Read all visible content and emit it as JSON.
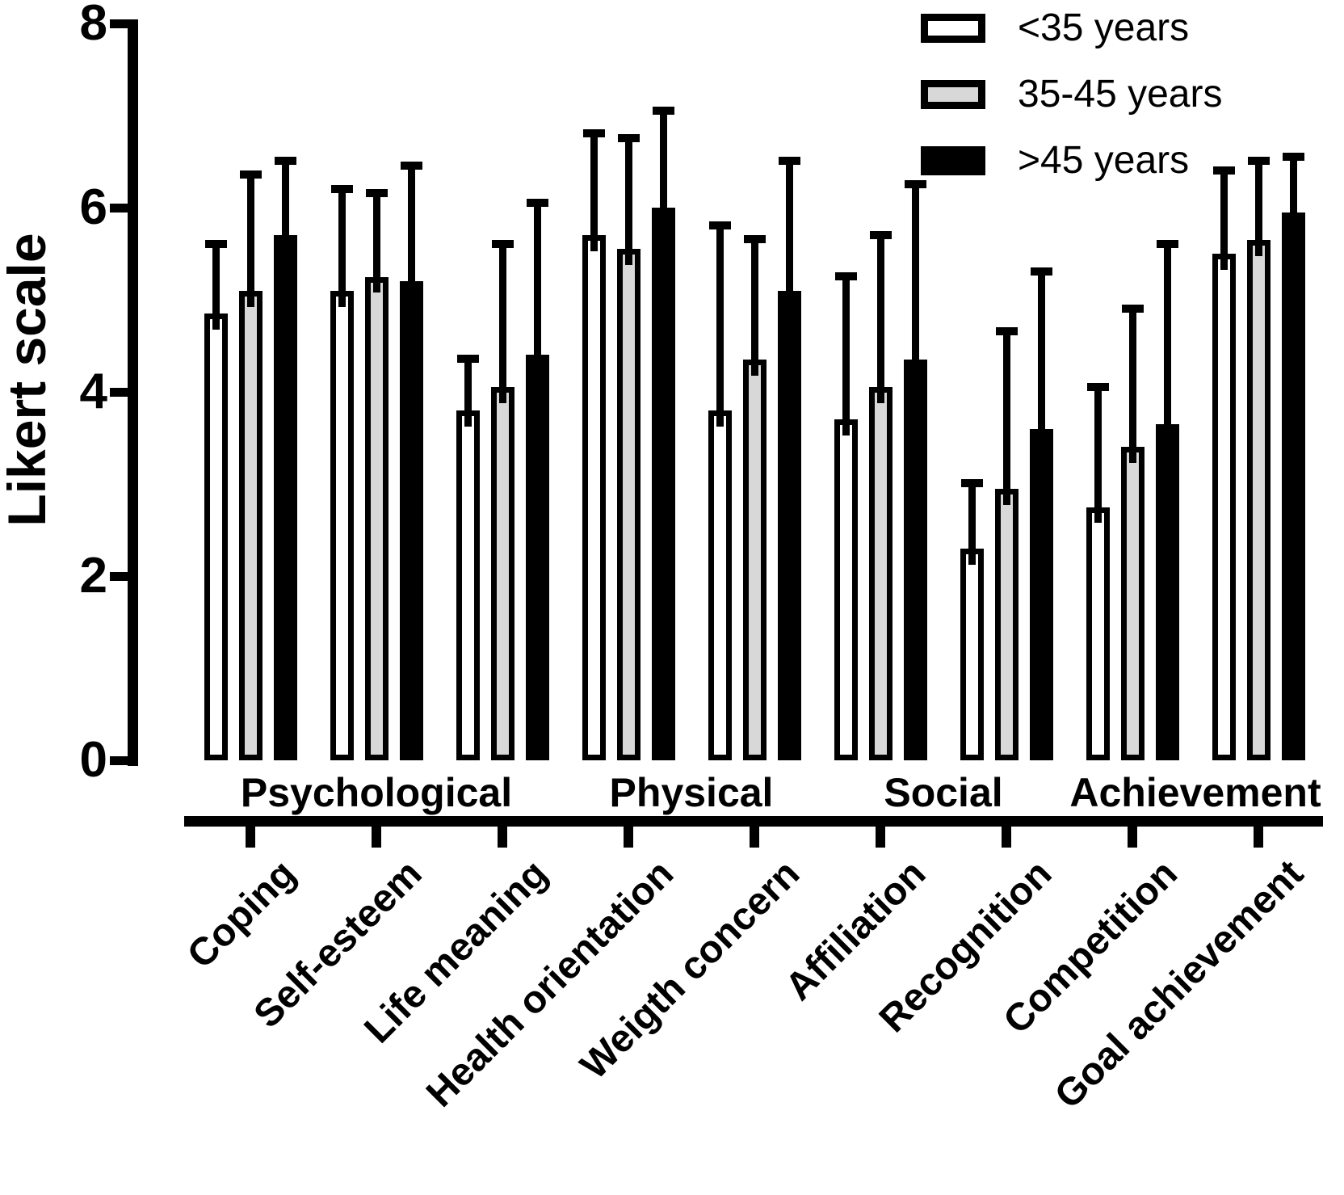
{
  "chart_data": {
    "type": "grouped_bar",
    "title": "",
    "axis": {
      "title": "Likert scale",
      "min": 0,
      "max": 8,
      "ticks": [
        0,
        2,
        4,
        6,
        8
      ]
    },
    "categories": [
      "Coping",
      "Self-esteem",
      "Life meaning",
      "Health orientation",
      "Weigth concern",
      "Affiliation",
      "Recognition",
      "Competition",
      "Goal achievement"
    ],
    "group_headers": [
      {
        "label": "Psychological",
        "categories": [
          0,
          1,
          2
        ]
      },
      {
        "label": "Physical",
        "categories": [
          3,
          4
        ]
      },
      {
        "label": "Social",
        "categories": [
          5,
          6
        ]
      },
      {
        "label": "Achievement",
        "categories": [
          7,
          8
        ]
      }
    ],
    "series": [
      {
        "name": "<35 years",
        "fill": "#ffffff",
        "values": [
          4.85,
          5.1,
          3.8,
          5.7,
          3.8,
          3.7,
          2.3,
          2.75,
          5.5
        ],
        "errors": [
          0.8,
          1.15,
          0.6,
          1.15,
          2.05,
          1.6,
          0.75,
          1.35,
          0.95
        ]
      },
      {
        "name": "35-45 years",
        "fill": "#d8d8d8",
        "values": [
          5.1,
          5.25,
          4.05,
          5.55,
          4.35,
          4.05,
          2.95,
          3.4,
          5.65
        ],
        "errors": [
          1.3,
          0.95,
          1.6,
          1.25,
          1.35,
          1.7,
          1.75,
          1.55,
          0.9
        ]
      },
      {
        "name": ">45 years",
        "fill": "#000000",
        "values": [
          5.7,
          5.2,
          4.4,
          6.0,
          5.1,
          4.35,
          3.6,
          3.65,
          5.95
        ],
        "errors": [
          0.85,
          1.3,
          1.7,
          1.1,
          1.45,
          1.95,
          1.75,
          2.0,
          0.65
        ]
      }
    ],
    "error_bars": "upper only, capped",
    "grid": false,
    "legend_position": "top-right",
    "colors": {
      "outline": "#000000",
      "background": "#ffffff",
      "gray_fill": "#d8d8d8"
    }
  }
}
